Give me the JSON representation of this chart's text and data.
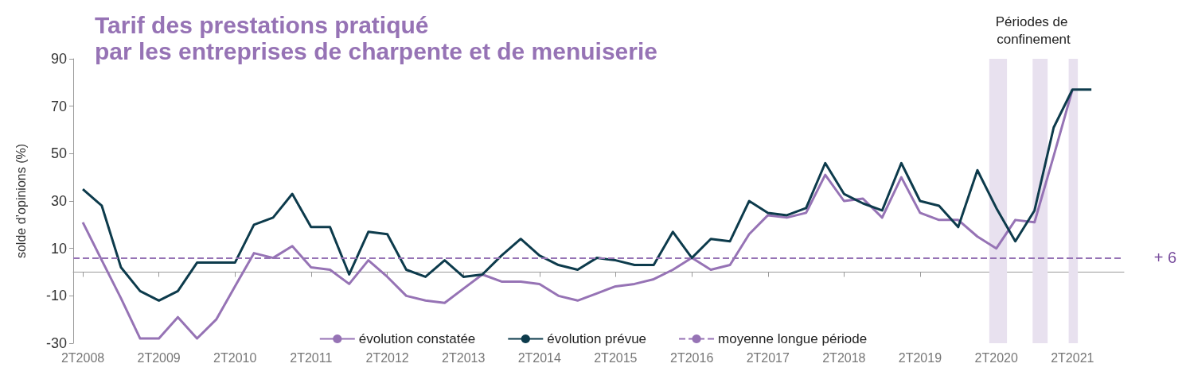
{
  "chart_data": {
    "type": "line",
    "title": "Tarif des prestations pratiqué\npar les entreprises de charpente et de menuiserie",
    "ylabel": "solde d’opinions (%)",
    "x": [
      "2008-04",
      "2008-07",
      "2008-10",
      "2009-01",
      "2009-04",
      "2009-07",
      "2009-10",
      "2010-01",
      "2010-04",
      "2010-07",
      "2010-10",
      "2011-01",
      "2011-04",
      "2011-07",
      "2011-10",
      "2012-01",
      "2012-04",
      "2012-07",
      "2012-10",
      "2013-01",
      "2013-04",
      "2013-07",
      "2013-10",
      "2014-01",
      "2014-04",
      "2014-07",
      "2014-10",
      "2015-01",
      "2015-04",
      "2015-07",
      "2015-10",
      "2016-01",
      "2016-04",
      "2016-07",
      "2016-10",
      "2017-01",
      "2017-04",
      "2017-07",
      "2017-10",
      "2018-01",
      "2018-04",
      "2018-07",
      "2018-10",
      "2019-01",
      "2019-04",
      "2019-07",
      "2019-10",
      "2020-01",
      "2020-04",
      "2020-07",
      "2020-10",
      "2021-01",
      "2021-04",
      "2021-07"
    ],
    "series": [
      {
        "name": "évolution constatée",
        "color": "#9673b5",
        "values": [
          21,
          5,
          -11,
          -28,
          -28,
          -19,
          -28,
          -20,
          -6,
          8,
          6,
          11,
          2,
          1,
          -5,
          5,
          -2,
          -10,
          -12,
          -13,
          -7,
          -1,
          -4,
          -4,
          -5,
          -10,
          -12,
          -9,
          -6,
          -5,
          -3,
          1,
          6,
          1,
          3,
          16,
          24,
          23,
          25,
          41,
          30,
          31,
          23,
          40,
          25,
          22,
          22,
          15,
          10,
          22,
          21,
          49,
          77,
          null
        ]
      },
      {
        "name": "évolution prévue",
        "color": "#0d3b4c",
        "values": [
          35,
          28,
          2,
          -8,
          -12,
          -8,
          4,
          4,
          4,
          20,
          23,
          33,
          19,
          19,
          -1,
          17,
          16,
          1,
          -2,
          5,
          -2,
          -1,
          7,
          14,
          7,
          3,
          1,
          6,
          5,
          3,
          3,
          17,
          6,
          14,
          13,
          30,
          25,
          24,
          27,
          46,
          33,
          29,
          26,
          46,
          30,
          28,
          19,
          43,
          27,
          13,
          26,
          61,
          77,
          77
        ]
      }
    ],
    "xlim": [
      "2008-02-15",
      "2021-12-04"
    ],
    "xticks": [
      {
        "value": "2008-04",
        "label": "2T2008"
      },
      {
        "value": "2009-04",
        "label": "2T2009"
      },
      {
        "value": "2010-04",
        "label": "2T2010"
      },
      {
        "value": "2011-04",
        "label": "2T2011"
      },
      {
        "value": "2012-04",
        "label": "2T2012"
      },
      {
        "value": "2013-04",
        "label": "2T2013"
      },
      {
        "value": "2014-04",
        "label": "2T2014"
      },
      {
        "value": "2015-04",
        "label": "2T2015"
      },
      {
        "value": "2016-04",
        "label": "2T2016"
      },
      {
        "value": "2017-04",
        "label": "2T2017"
      },
      {
        "value": "2018-04",
        "label": "2T2018"
      },
      {
        "value": "2019-04",
        "label": "2T2019"
      },
      {
        "value": "2020-04",
        "label": "2T2020"
      },
      {
        "value": "2021-04",
        "label": "2T2021"
      }
    ],
    "ylim": [
      -30,
      90
    ],
    "yticks": [
      -30,
      -10,
      10,
      30,
      50,
      70,
      90
    ],
    "ref_lines": [
      {
        "axis": "y",
        "value": 6,
        "label": "moyenne longue période",
        "color": "#9673b5",
        "line_style": "dashed"
      }
    ],
    "bands": [
      {
        "axis": "x",
        "from": "2020-02-27",
        "to": "2020-05-22",
        "color": "#e8e1ef"
      },
      {
        "axis": "x",
        "from": "2020-09-22",
        "to": "2020-12-03",
        "color": "#e8e1ef"
      },
      {
        "axis": "x",
        "from": "2021-03-14",
        "to": "2021-04-27",
        "color": "#e8e1ef"
      }
    ],
    "annotations": [
      "+ 6",
      "Périodes de confinement"
    ],
    "marker": "none",
    "grid": false,
    "legend": "bottom"
  }
}
